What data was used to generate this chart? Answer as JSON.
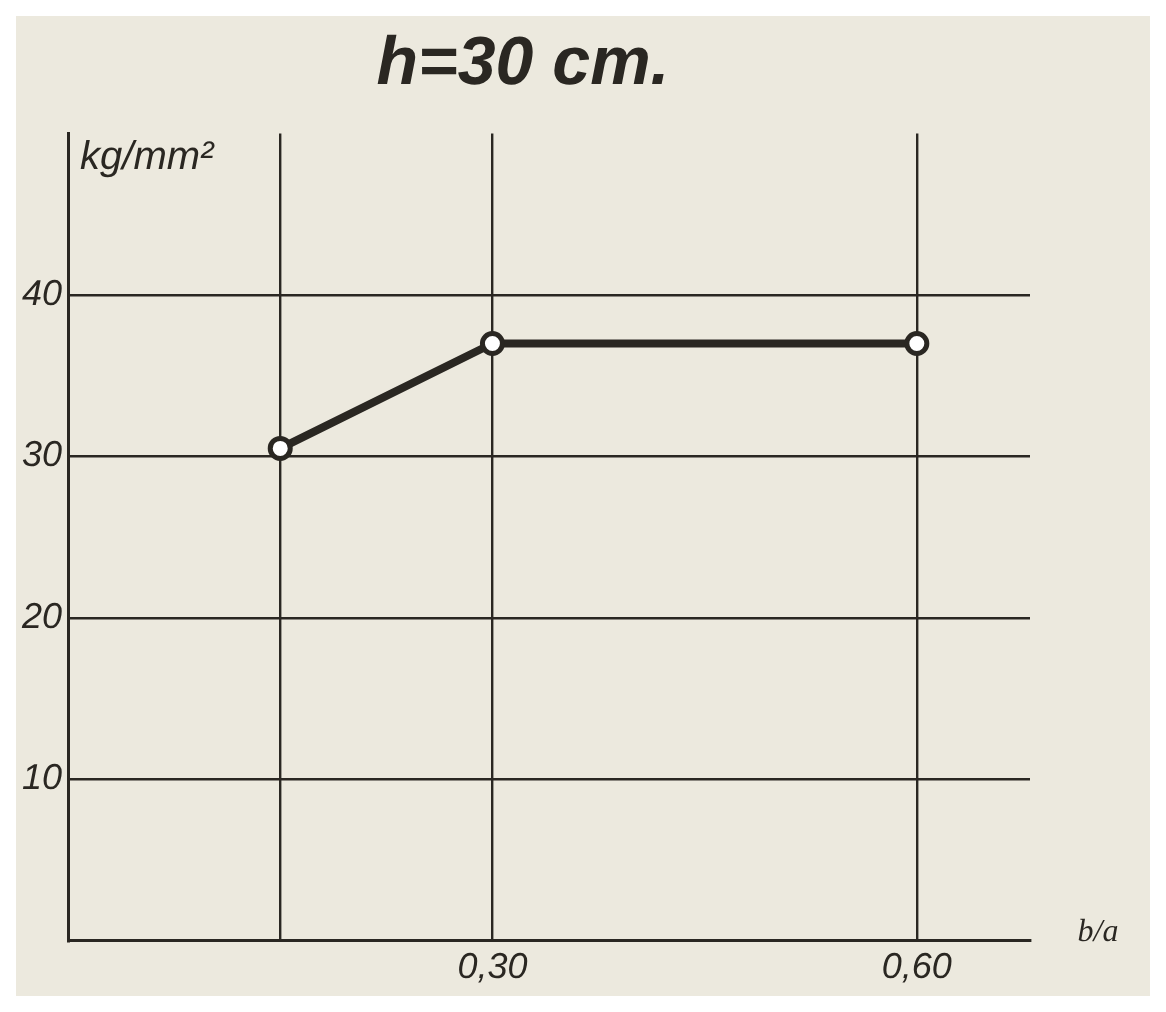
{
  "chart_data": {
    "type": "line",
    "title": "h=30 cm.",
    "ylabel": "kg/mm²",
    "xlabel": "b/a",
    "x": [
      0.15,
      0.3,
      0.6
    ],
    "series": [
      {
        "color": "#2a2722",
        "values": [
          30.5,
          37,
          37
        ]
      }
    ],
    "xlim": [
      0,
      0.68
    ],
    "xticks": [
      {
        "value": 0.15,
        "label": null
      },
      {
        "value": 0.3,
        "label": "0,30"
      },
      {
        "value": 0.6,
        "label": "0,60"
      }
    ],
    "ylim": [
      0,
      50
    ],
    "yticks": [
      10,
      20,
      30,
      40
    ],
    "grid": true,
    "legend": false,
    "marker": "circle",
    "line_style": "solid"
  }
}
